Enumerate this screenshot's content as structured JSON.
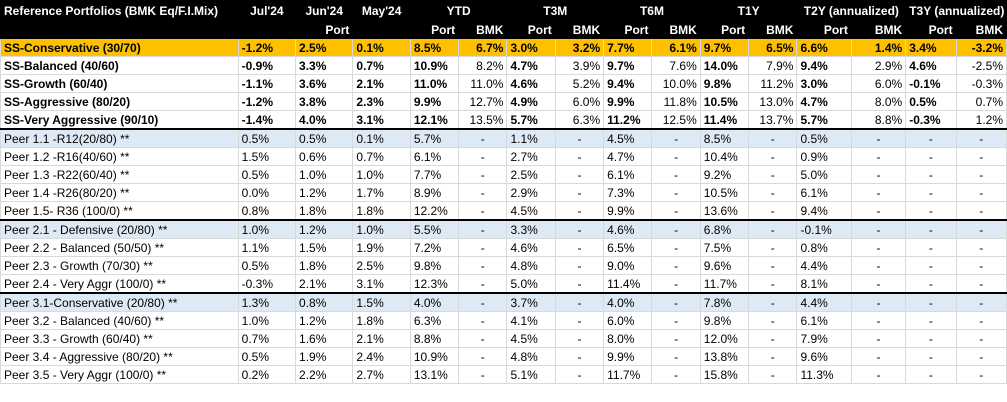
{
  "header": {
    "label": "Reference Portfolios (BMK Eq/F.I.Mix)",
    "jul": "Jul'24",
    "jun": "Jun'24",
    "may": "May'24",
    "ytd": "YTD",
    "t3m": "T3M",
    "t6m": "T6M",
    "t1y": "T1Y",
    "t2y": "T2Y (annualized)",
    "t3y": "T3Y (annualized)",
    "sub": [
      "",
      "",
      "Port",
      "",
      "Port",
      "BMK",
      "Port",
      "BMK",
      "Port",
      "BMK",
      "Port",
      "BMK",
      "Port",
      "BMK",
      "Port",
      "BMK"
    ]
  },
  "rows": [
    {
      "c": [
        "SS-Conservative (30/70)",
        "-1.2%",
        "2.5%",
        "0.1%",
        "8.5%",
        "6.7%",
        "3.0%",
        "3.2%",
        "7.7%",
        "6.1%",
        "9.7%",
        "6.5%",
        "6.6%",
        "1.4%",
        "3.4%",
        "-3.2%"
      ]
    },
    {
      "c": [
        "SS-Balanced (40/60)",
        "-0.9%",
        "3.3%",
        "0.7%",
        "10.9%",
        "8.2%",
        "4.7%",
        "3.9%",
        "9.7%",
        "7.6%",
        "14.0%",
        "7.9%",
        "9.4%",
        "2.9%",
        "4.6%",
        "-2.5%"
      ]
    },
    {
      "c": [
        "SS-Growth (60/40)",
        "-1.1%",
        "3.6%",
        "2.1%",
        "11.0%",
        "11.0%",
        "4.6%",
        "5.2%",
        "9.4%",
        "10.0%",
        "9.8%",
        "11.2%",
        "3.0%",
        "6.0%",
        "-0.1%",
        "-0.3%"
      ]
    },
    {
      "c": [
        "SS-Aggressive (80/20)",
        "-1.2%",
        "3.8%",
        "2.3%",
        "9.9%",
        "12.7%",
        "4.9%",
        "6.0%",
        "9.9%",
        "11.8%",
        "10.5%",
        "13.0%",
        "4.7%",
        "8.0%",
        "0.5%",
        "0.7%"
      ]
    },
    {
      "c": [
        "SS-Very Aggressive (90/10)",
        "-1.4%",
        "4.0%",
        "3.1%",
        "12.1%",
        "13.5%",
        "5.7%",
        "6.3%",
        "11.2%",
        "12.5%",
        "11.4%",
        "13.7%",
        "5.7%",
        "8.8%",
        "-0.3%",
        "1.2%"
      ]
    },
    {
      "c": [
        "Peer 1.1 -R12(20/80) **",
        "0.5%",
        "0.5%",
        "0.1%",
        "5.7%",
        "-",
        "1.1%",
        "-",
        "4.5%",
        "-",
        "8.5%",
        "-",
        "0.5%",
        "-",
        "-",
        "-"
      ]
    },
    {
      "c": [
        "Peer 1.2 -R16(40/60) **",
        "1.5%",
        "0.6%",
        "0.7%",
        "6.1%",
        "-",
        "2.7%",
        "-",
        "4.7%",
        "-",
        "10.4%",
        "-",
        "0.9%",
        "-",
        "-",
        "-"
      ]
    },
    {
      "c": [
        "Peer 1.3 -R22(60/40) **",
        "0.5%",
        "1.0%",
        "1.0%",
        "7.7%",
        "-",
        "2.5%",
        "-",
        "6.1%",
        "-",
        "9.2%",
        "-",
        "5.0%",
        "-",
        "-",
        "-"
      ]
    },
    {
      "c": [
        "Peer 1.4 -R26(80/20) **",
        "0.0%",
        "1.2%",
        "1.7%",
        "8.9%",
        "-",
        "2.9%",
        "-",
        "7.3%",
        "-",
        "10.5%",
        "-",
        "6.1%",
        "-",
        "-",
        "-"
      ]
    },
    {
      "c": [
        "Peer 1.5- R36 (100/0) **",
        "0.8%",
        "1.8%",
        "1.8%",
        "12.2%",
        "-",
        "4.5%",
        "-",
        "9.9%",
        "-",
        "13.6%",
        "-",
        "9.4%",
        "-",
        "-",
        "-"
      ]
    },
    {
      "c": [
        "Peer 2.1  - Defensive  (20/80) **",
        "1.0%",
        "1.2%",
        "1.0%",
        "5.5%",
        "-",
        "3.3%",
        "-",
        "4.6%",
        "-",
        "6.8%",
        "-",
        "-0.1%",
        "-",
        "-",
        "-"
      ]
    },
    {
      "c": [
        "Peer 2.2  - Balanced  (50/50) **",
        "1.1%",
        "1.5%",
        "1.9%",
        "7.2%",
        "-",
        "4.6%",
        "-",
        "6.5%",
        "-",
        "7.5%",
        "-",
        "0.8%",
        "-",
        "-",
        "-"
      ]
    },
    {
      "c": [
        "Peer 2.3  - Growth  (70/30) **",
        "0.5%",
        "1.8%",
        "2.5%",
        "9.8%",
        "-",
        "4.8%",
        "-",
        "9.0%",
        "-",
        "9.6%",
        "-",
        "4.4%",
        "-",
        "-",
        "-"
      ]
    },
    {
      "c": [
        "Peer 2.4  - Very Aggr  (100/0) **",
        "-0.3%",
        "2.1%",
        "3.1%",
        "12.3%",
        "-",
        "5.0%",
        "-",
        "11.4%",
        "-",
        "11.7%",
        "-",
        "8.1%",
        "-",
        "-",
        "-"
      ]
    },
    {
      "c": [
        "Peer 3.1-Conservative (20/80) **",
        "1.3%",
        "0.8%",
        "1.5%",
        "4.0%",
        "-",
        "3.7%",
        "-",
        "4.0%",
        "-",
        "7.8%",
        "-",
        "4.4%",
        "-",
        "-",
        "-"
      ]
    },
    {
      "c": [
        "Peer 3.2 - Balanced  (40/60) **",
        "1.0%",
        "1.2%",
        "1.8%",
        "6.3%",
        "-",
        "4.1%",
        "-",
        "6.0%",
        "-",
        "9.8%",
        "-",
        "6.1%",
        "-",
        "-",
        "-"
      ]
    },
    {
      "c": [
        "Peer 3.3 - Growth  (60/40) **",
        "0.7%",
        "1.6%",
        "2.1%",
        "8.8%",
        "-",
        "4.5%",
        "-",
        "8.0%",
        "-",
        "12.0%",
        "-",
        "7.9%",
        "-",
        "-",
        "-"
      ]
    },
    {
      "c": [
        "Peer 3.4 - Aggressive  (80/20) **",
        "0.5%",
        "1.9%",
        "2.4%",
        "10.9%",
        "-",
        "4.8%",
        "-",
        "9.9%",
        "-",
        "13.8%",
        "-",
        "9.6%",
        "-",
        "-",
        "-"
      ]
    },
    {
      "c": [
        "Peer 3.5  - Very Aggr (100/0) **",
        "0.2%",
        "2.2%",
        "2.7%",
        "13.1%",
        "-",
        "5.1%",
        "-",
        "11.7%",
        "-",
        "15.8%",
        "-",
        "11.3%",
        "-",
        "-",
        "-"
      ]
    }
  ]
}
